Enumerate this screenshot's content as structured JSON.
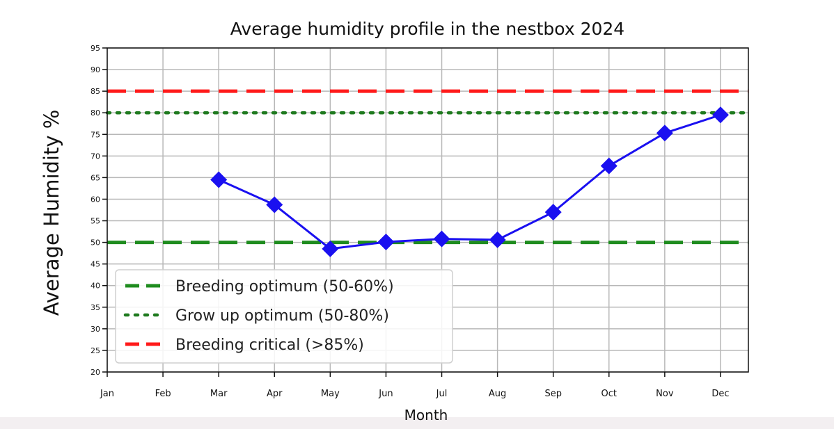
{
  "chart_data": {
    "type": "line",
    "title": "Average humidity profile in the nestbox 2024",
    "xlabel": "Month",
    "ylabel": "Average Humidity %",
    "categories": [
      "Jan",
      "Feb",
      "Mar",
      "Apr",
      "May",
      "Jun",
      "Jul",
      "Aug",
      "Sep",
      "Oct",
      "Nov",
      "Dec"
    ],
    "ylim": [
      20,
      95
    ],
    "yticks": [
      20,
      25,
      30,
      35,
      40,
      45,
      50,
      55,
      60,
      65,
      70,
      75,
      80,
      85,
      90,
      95
    ],
    "grid": true,
    "legend_position": "lower-left",
    "series": [
      {
        "color": "#1a10f0",
        "marker": "diamond",
        "values": [
          null,
          null,
          64.5,
          58.7,
          48.5,
          50.1,
          50.8,
          50.6,
          57.0,
          67.7,
          75.3,
          79.5
        ]
      }
    ],
    "reference_lines": [
      {
        "name": "Breeding optimum (50-60%)",
        "value": 50,
        "color": "#1f8c1f",
        "style": "dashed"
      },
      {
        "name": "Grow up optimum (50-80%)",
        "value": 80,
        "color": "#1f7a1f",
        "style": "dotted"
      },
      {
        "name": "Breeding critical (>85%)",
        "value": 85,
        "color": "#ff1a1a",
        "style": "dashed"
      }
    ]
  }
}
